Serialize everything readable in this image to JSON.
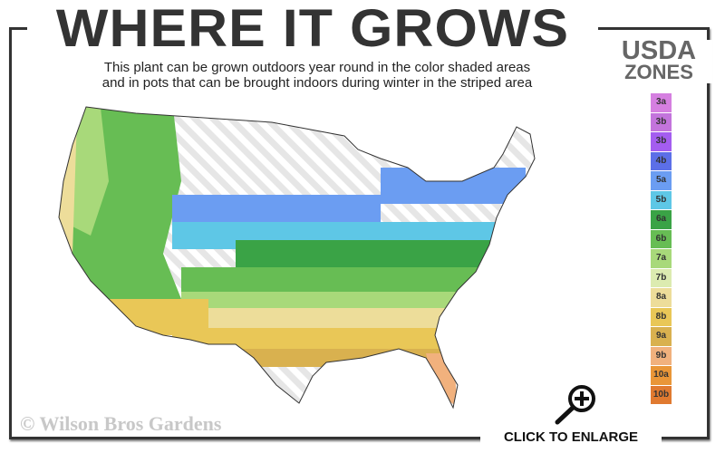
{
  "header": {
    "title": "WHERE IT GROWS",
    "subtitle_line1": "This plant can be grown outdoors year round in the color shaded areas",
    "subtitle_line2": "and in pots that can be brought indoors during winter in the striped area"
  },
  "legend": {
    "title_line1": "USDA",
    "title_line2": "ZONES",
    "zones": [
      {
        "label": "3a",
        "color": "#d57fe0"
      },
      {
        "label": "3b",
        "color": "#c374dc"
      },
      {
        "label": "3b",
        "color": "#a45df0"
      },
      {
        "label": "4b",
        "color": "#5c6fe8"
      },
      {
        "label": "5a",
        "color": "#6b9df2"
      },
      {
        "label": "5b",
        "color": "#5ec7e6"
      },
      {
        "label": "6a",
        "color": "#3aa346"
      },
      {
        "label": "6b",
        "color": "#67bd54"
      },
      {
        "label": "7a",
        "color": "#a8d97a"
      },
      {
        "label": "7b",
        "color": "#dcebb0"
      },
      {
        "label": "8a",
        "color": "#eddd9a"
      },
      {
        "label": "8b",
        "color": "#e9c757"
      },
      {
        "label": "9a",
        "color": "#d9b14f"
      },
      {
        "label": "9b",
        "color": "#f1b17d"
      },
      {
        "label": "10a",
        "color": "#e99638"
      },
      {
        "label": "10b",
        "color": "#e07a30"
      }
    ]
  },
  "map": {
    "icon": "usa-hardiness-zone-map"
  },
  "footer": {
    "watermark": "© Wilson Bros Gardens",
    "enlarge_label": "CLICK TO ENLARGE",
    "enlarge_icon": "magnifier-plus-icon"
  }
}
